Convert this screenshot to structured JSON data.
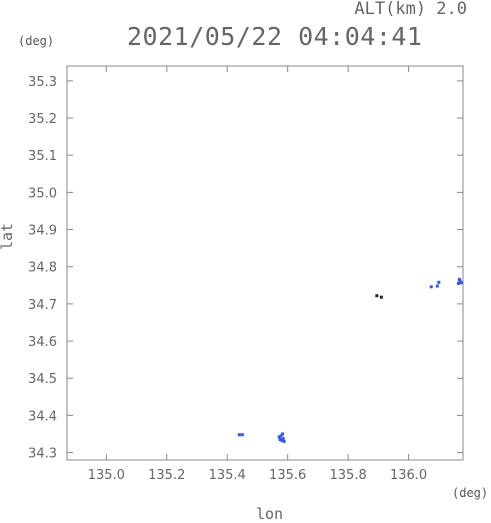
{
  "header": {
    "altitude": "ALT(km) 2.0",
    "timestamp": "2021/05/22 04:04:41"
  },
  "chart_data": {
    "type": "scatter",
    "xlabel": "lon",
    "ylabel": "lat",
    "xunit": "(deg)",
    "yunit": "(deg)",
    "xlim": [
      134.87,
      136.18
    ],
    "ylim": [
      34.28,
      35.34
    ],
    "xticks": [
      "135.0",
      "135.2",
      "135.4",
      "135.6",
      "135.8",
      "136.0"
    ],
    "yticks": [
      "34.3",
      "34.4",
      "34.5",
      "34.6",
      "34.7",
      "34.8",
      "34.9",
      "35.0",
      "35.1",
      "35.2",
      "35.3"
    ],
    "grid": false,
    "colors": {
      "echo": "#3355ee",
      "axis": "#888888",
      "speck": "#222222"
    },
    "points": [
      {
        "x": 135.44,
        "y": 34.348,
        "c": "echo"
      },
      {
        "x": 135.45,
        "y": 34.348,
        "c": "echo"
      },
      {
        "x": 135.575,
        "y": 34.335,
        "c": "echo"
      },
      {
        "x": 135.58,
        "y": 34.333,
        "c": "echo"
      },
      {
        "x": 135.585,
        "y": 34.338,
        "c": "echo"
      },
      {
        "x": 135.578,
        "y": 34.345,
        "c": "echo"
      },
      {
        "x": 135.583,
        "y": 34.35,
        "c": "echo"
      },
      {
        "x": 135.572,
        "y": 34.342,
        "c": "echo"
      },
      {
        "x": 135.588,
        "y": 34.33,
        "c": "echo"
      },
      {
        "x": 135.895,
        "y": 34.722,
        "c": "speck"
      },
      {
        "x": 135.91,
        "y": 34.718,
        "c": "speck"
      },
      {
        "x": 136.075,
        "y": 34.746,
        "c": "echo"
      },
      {
        "x": 136.095,
        "y": 34.748,
        "c": "echo"
      },
      {
        "x": 136.1,
        "y": 34.758,
        "c": "echo"
      },
      {
        "x": 136.165,
        "y": 34.755,
        "c": "echo"
      },
      {
        "x": 136.17,
        "y": 34.762,
        "c": "echo"
      },
      {
        "x": 136.175,
        "y": 34.757,
        "c": "echo"
      },
      {
        "x": 136.168,
        "y": 34.766,
        "c": "echo"
      }
    ]
  }
}
